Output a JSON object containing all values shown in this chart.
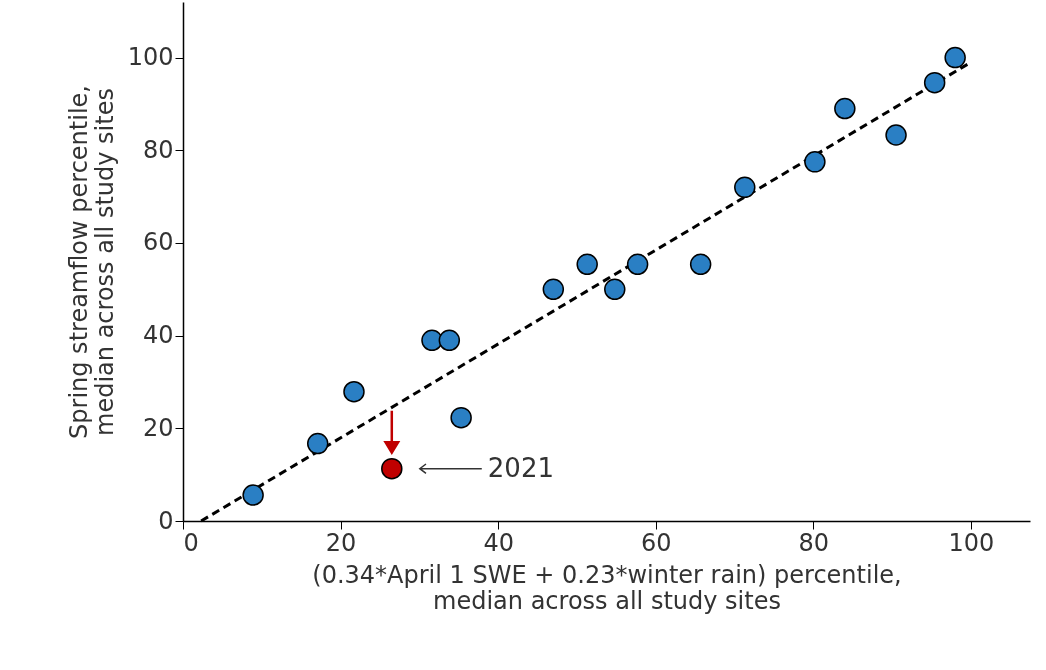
{
  "chart_data": {
    "type": "scatter",
    "xlabel": "(0.34*April 1 SWE + 0.23*winter rain) percentile,\nmedian across all study sites",
    "ylabel": "Spring streamflow percentile,\nmedian across all study sites",
    "series": [
      {
        "color": "#2a7fc4",
        "x": [
          8.9,
          17.1,
          21.7,
          31.6,
          33.8,
          35.3,
          47.0,
          51.3,
          54.8,
          57.7,
          65.7,
          71.3,
          80.2,
          84.0,
          90.5,
          95.4,
          98.0
        ],
        "values": [
          5.6,
          16.7,
          27.9,
          39,
          39,
          22.3,
          50,
          55.4,
          50,
          55.4,
          55.4,
          72,
          77.5,
          89,
          83.3,
          94.6,
          100
        ]
      },
      {
        "color": "#c00000",
        "x": [
          26.5
        ],
        "values": [
          11.3
        ]
      },
      {
        "type": "line",
        "color": "#000000",
        "line_style": "dashed",
        "marker": "none",
        "x": [
          2.3,
          100
        ],
        "values": [
          0,
          99
        ]
      }
    ],
    "annotations": [
      "2021"
    ],
    "xlim": [
      0,
      107.5
    ],
    "ylim": [
      0,
      112
    ],
    "xticks": [
      0,
      20,
      40,
      60,
      80,
      100
    ],
    "yticks": [
      0,
      20,
      40,
      60,
      80,
      100
    ],
    "marker": "circle"
  }
}
